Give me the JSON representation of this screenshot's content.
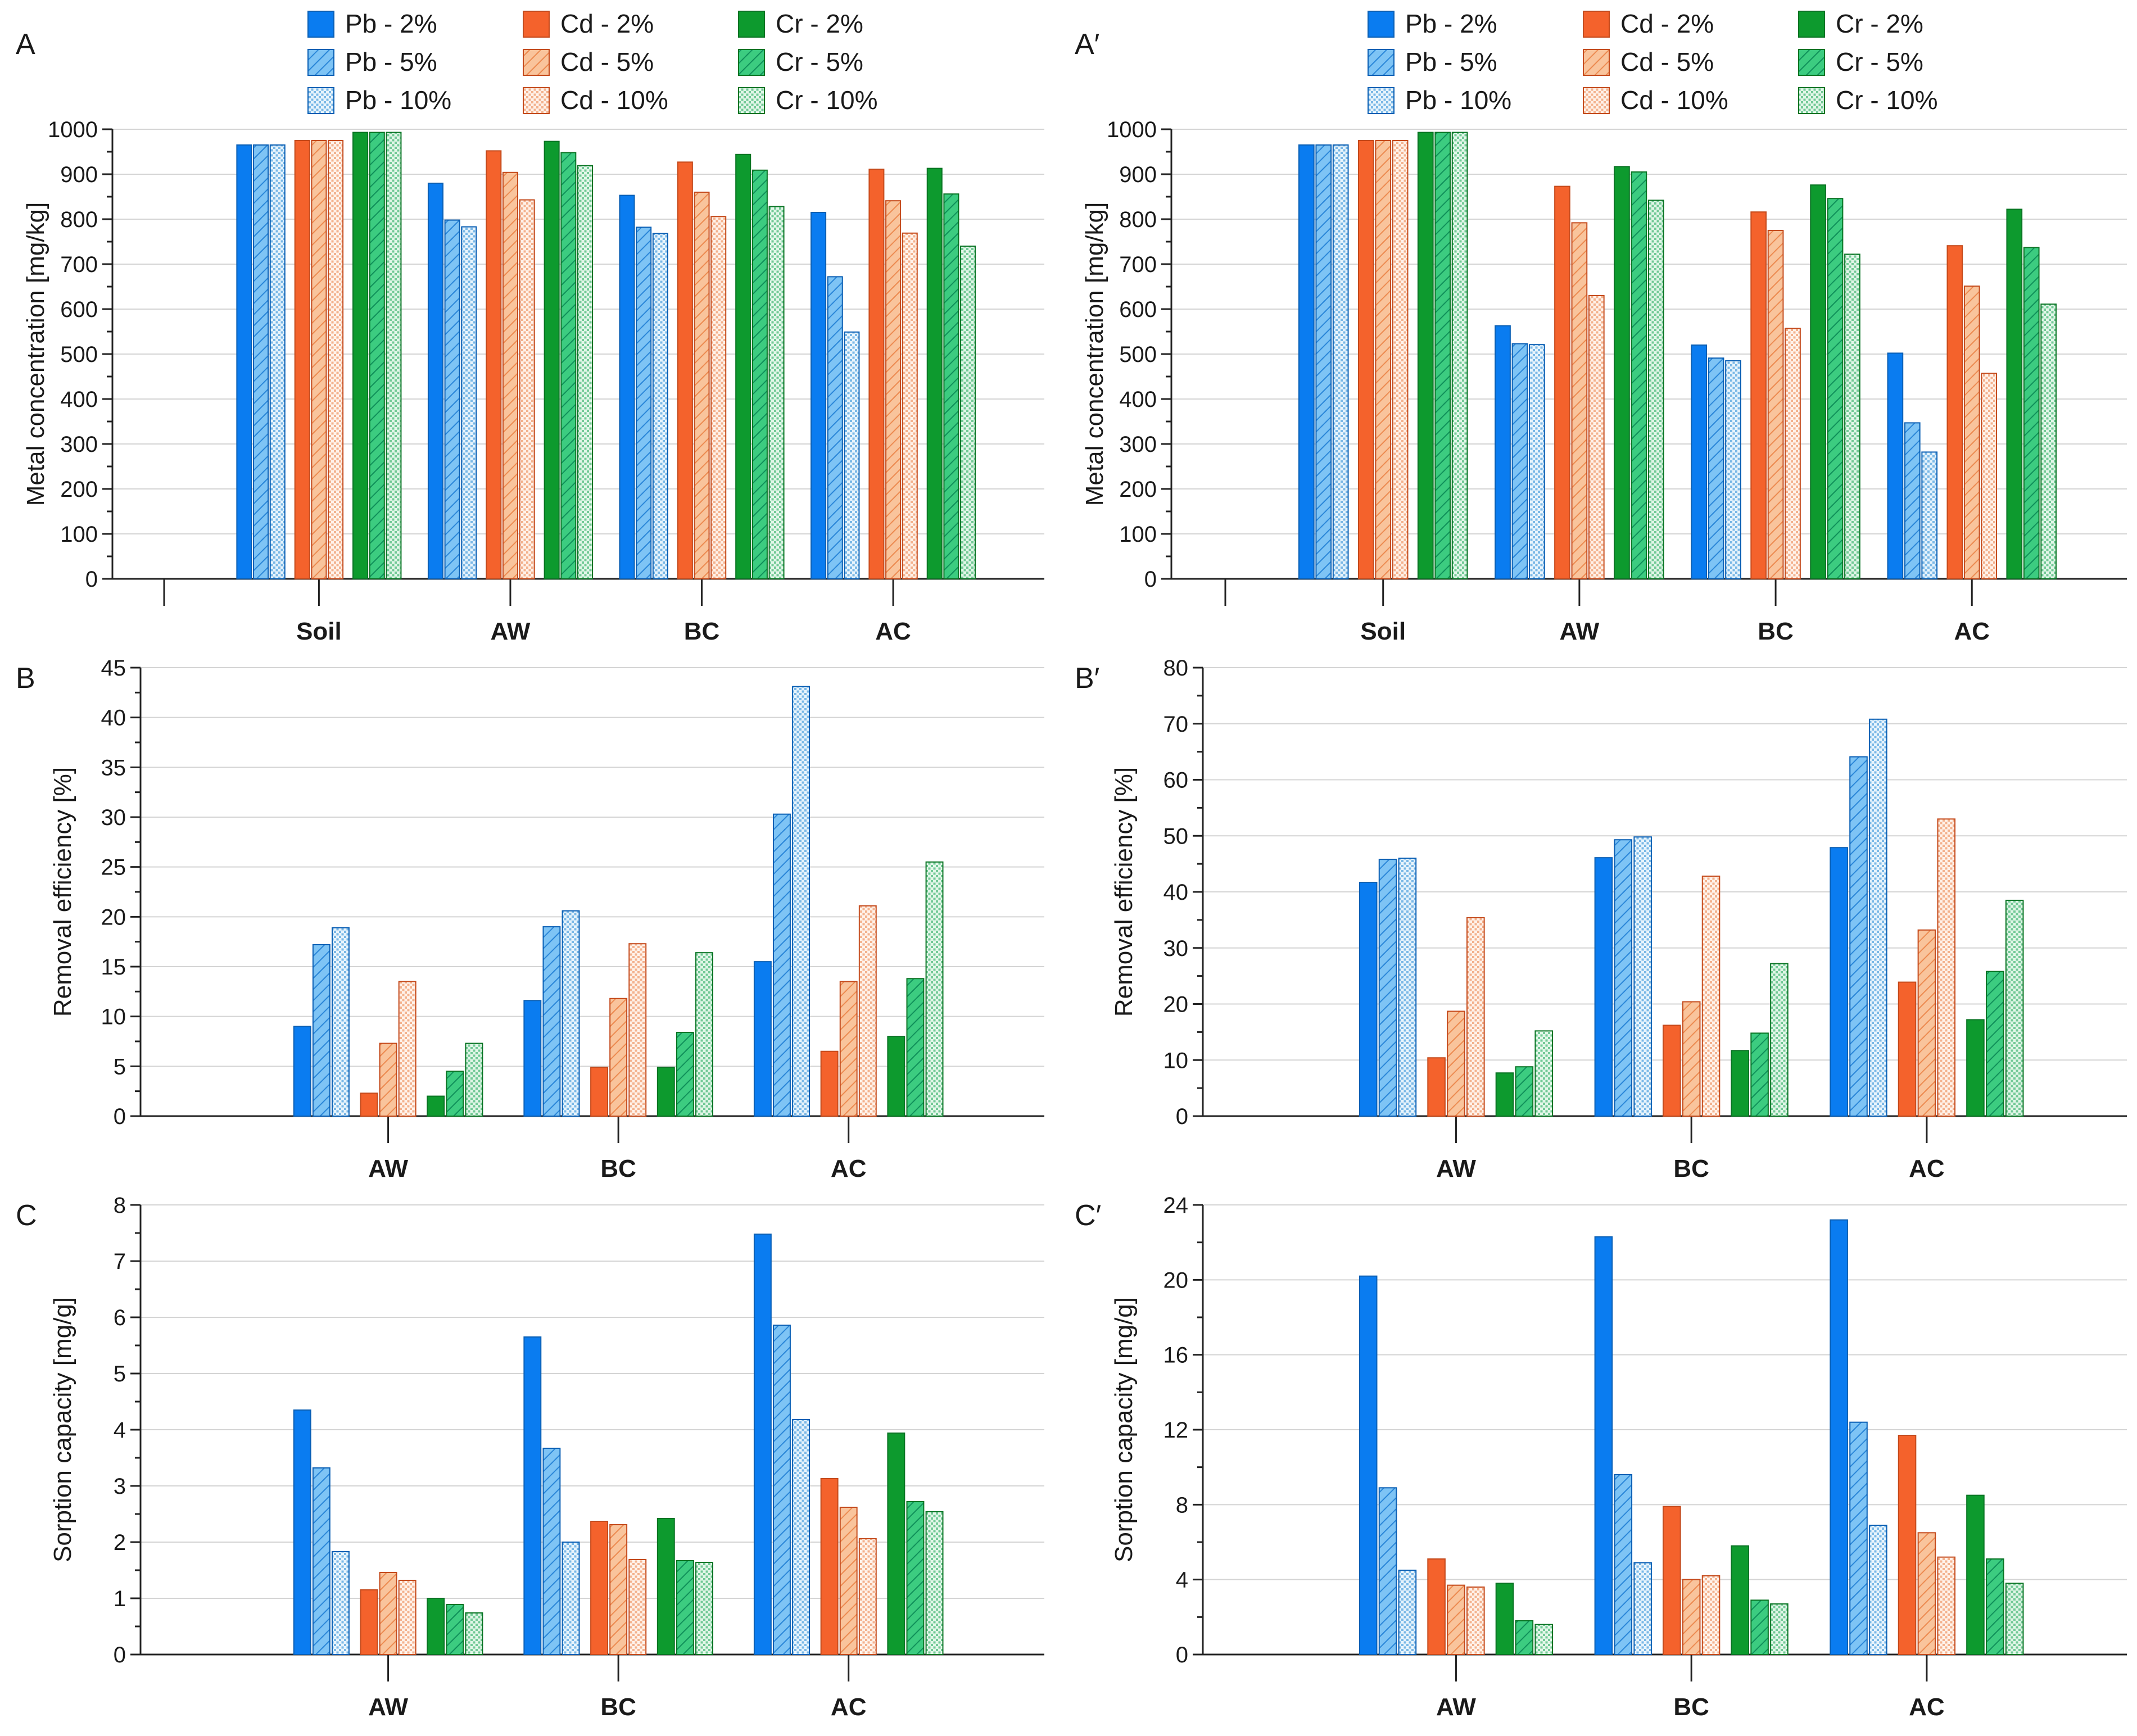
{
  "legend": [
    {
      "label": "Pb - 2%",
      "metal": "Pb",
      "dose": "2%"
    },
    {
      "label": "Cd - 2%",
      "metal": "Cd",
      "dose": "2%"
    },
    {
      "label": "Cr - 2%",
      "metal": "Cr",
      "dose": "2%"
    },
    {
      "label": "Pb - 5%",
      "metal": "Pb",
      "dose": "5%"
    },
    {
      "label": "Cd - 5%",
      "metal": "Cd",
      "dose": "5%"
    },
    {
      "label": "Cr - 5%",
      "metal": "Cr",
      "dose": "5%"
    },
    {
      "label": "Pb - 10%",
      "metal": "Pb",
      "dose": "10%"
    },
    {
      "label": "Cd - 10%",
      "metal": "Cd",
      "dose": "10%"
    },
    {
      "label": "Cr - 10%",
      "metal": "Cr",
      "dose": "10%"
    }
  ],
  "colors": {
    "Pb": {
      "solid": "#0a7cf0",
      "light": "#7ec4f5",
      "pale": "#cfe7f8",
      "edge": "#0a5fb4"
    },
    "Cd": {
      "solid": "#f4622c",
      "light": "#f9b98a",
      "pale": "#fde3d3",
      "edge": "#c44a1c"
    },
    "Cr": {
      "solid": "#0d9a2e",
      "light": "#30c878",
      "pale": "#b8e8c8",
      "edge": "#0a7424"
    }
  },
  "series_order": [
    "Pb - 2%",
    "Pb - 5%",
    "Pb - 10%",
    "Cd - 2%",
    "Cd - 5%",
    "Cd - 10%",
    "Cr - 2%",
    "Cr - 5%",
    "Cr - 10%"
  ],
  "chart_data": [
    {
      "panel": "A",
      "type": "bar",
      "ylabel": "Metal concentration [mg/kg]",
      "ylim": [
        0,
        1000
      ],
      "yticks": [
        0,
        100,
        200,
        300,
        400,
        500,
        600,
        700,
        800,
        900,
        1000
      ],
      "categories": [
        "Soil",
        "AW",
        "BC",
        "AC"
      ],
      "series": [
        {
          "name": "Pb - 2%",
          "values": [
            965,
            880,
            853,
            815
          ]
        },
        {
          "name": "Pb - 5%",
          "values": [
            965,
            798,
            782,
            672
          ]
        },
        {
          "name": "Pb - 10%",
          "values": [
            965,
            783,
            768,
            549
          ]
        },
        {
          "name": "Cd - 2%",
          "values": [
            975,
            952,
            927,
            911
          ]
        },
        {
          "name": "Cd - 5%",
          "values": [
            975,
            904,
            860,
            841
          ]
        },
        {
          "name": "Cd - 10%",
          "values": [
            975,
            843,
            806,
            769
          ]
        },
        {
          "name": "Cr - 2%",
          "values": [
            993,
            973,
            944,
            913
          ]
        },
        {
          "name": "Cr - 5%",
          "values": [
            993,
            948,
            909,
            856
          ]
        },
        {
          "name": "Cr - 10%",
          "values": [
            993,
            919,
            828,
            740
          ]
        }
      ]
    },
    {
      "panel": "A′",
      "type": "bar",
      "ylabel": "Metal concentration [mg/kg]",
      "ylim": [
        0,
        1000
      ],
      "yticks": [
        0,
        100,
        200,
        300,
        400,
        500,
        600,
        700,
        800,
        900,
        1000
      ],
      "categories": [
        "Soil",
        "AW",
        "BC",
        "AC"
      ],
      "series": [
        {
          "name": "Pb - 2%",
          "values": [
            965,
            563,
            520,
            502
          ]
        },
        {
          "name": "Pb - 5%",
          "values": [
            965,
            523,
            491,
            347
          ]
        },
        {
          "name": "Pb - 10%",
          "values": [
            965,
            521,
            485,
            282
          ]
        },
        {
          "name": "Cd - 2%",
          "values": [
            975,
            873,
            816,
            741
          ]
        },
        {
          "name": "Cd - 5%",
          "values": [
            975,
            792,
            775,
            651
          ]
        },
        {
          "name": "Cd - 10%",
          "values": [
            975,
            630,
            557,
            457
          ]
        },
        {
          "name": "Cr - 2%",
          "values": [
            993,
            917,
            876,
            822
          ]
        },
        {
          "name": "Cr - 5%",
          "values": [
            993,
            905,
            846,
            737
          ]
        },
        {
          "name": "Cr - 10%",
          "values": [
            993,
            842,
            722,
            611
          ]
        }
      ]
    },
    {
      "panel": "B",
      "type": "bar",
      "ylabel": "Removal efficiency [%]",
      "ylim": [
        0,
        45
      ],
      "yticks": [
        0,
        5,
        10,
        15,
        20,
        25,
        30,
        35,
        40,
        45
      ],
      "categories": [
        "AW",
        "BC",
        "AC"
      ],
      "series": [
        {
          "name": "Pb - 2%",
          "values": [
            9.0,
            11.6,
            15.5
          ]
        },
        {
          "name": "Pb - 5%",
          "values": [
            17.2,
            19.0,
            30.3
          ]
        },
        {
          "name": "Pb - 10%",
          "values": [
            18.9,
            20.6,
            43.1
          ]
        },
        {
          "name": "Cd - 2%",
          "values": [
            2.3,
            4.9,
            6.5
          ]
        },
        {
          "name": "Cd - 5%",
          "values": [
            7.3,
            11.8,
            13.5
          ]
        },
        {
          "name": "Cd - 10%",
          "values": [
            13.5,
            17.3,
            21.1
          ]
        },
        {
          "name": "Cr - 2%",
          "values": [
            2.0,
            4.9,
            8.0
          ]
        },
        {
          "name": "Cr - 5%",
          "values": [
            4.5,
            8.4,
            13.8
          ]
        },
        {
          "name": "Cr - 10%",
          "values": [
            7.3,
            16.4,
            25.5
          ]
        }
      ]
    },
    {
      "panel": "B′",
      "type": "bar",
      "ylabel": "Removal efficiency [%]",
      "ylim": [
        0,
        80
      ],
      "yticks": [
        0,
        10,
        20,
        30,
        40,
        50,
        60,
        70,
        80
      ],
      "categories": [
        "AW",
        "BC",
        "AC"
      ],
      "series": [
        {
          "name": "Pb - 2%",
          "values": [
            41.7,
            46.1,
            47.9
          ]
        },
        {
          "name": "Pb - 5%",
          "values": [
            45.8,
            49.3,
            64.1
          ]
        },
        {
          "name": "Pb - 10%",
          "values": [
            46.0,
            49.8,
            70.8
          ]
        },
        {
          "name": "Cd - 2%",
          "values": [
            10.4,
            16.2,
            23.9
          ]
        },
        {
          "name": "Cd - 5%",
          "values": [
            18.7,
            20.4,
            33.2
          ]
        },
        {
          "name": "Cd - 10%",
          "values": [
            35.4,
            42.8,
            53.0
          ]
        },
        {
          "name": "Cr - 2%",
          "values": [
            7.7,
            11.7,
            17.2
          ]
        },
        {
          "name": "Cr - 5%",
          "values": [
            8.8,
            14.8,
            25.8
          ]
        },
        {
          "name": "Cr - 10%",
          "values": [
            15.2,
            27.2,
            38.5
          ]
        }
      ]
    },
    {
      "panel": "C",
      "type": "bar",
      "ylabel": "Sorption capacity [mg/g]",
      "ylim": [
        0,
        8
      ],
      "yticks": [
        0,
        1,
        2,
        3,
        4,
        5,
        6,
        7,
        8
      ],
      "categories": [
        "AW",
        "BC",
        "AC"
      ],
      "series": [
        {
          "name": "Pb - 2%",
          "values": [
            4.35,
            5.65,
            7.48
          ]
        },
        {
          "name": "Pb - 5%",
          "values": [
            3.32,
            3.67,
            5.86
          ]
        },
        {
          "name": "Pb - 10%",
          "values": [
            1.83,
            2.0,
            4.18
          ]
        },
        {
          "name": "Cd - 2%",
          "values": [
            1.15,
            2.37,
            3.13
          ]
        },
        {
          "name": "Cd - 5%",
          "values": [
            1.46,
            2.31,
            2.62
          ]
        },
        {
          "name": "Cd - 10%",
          "values": [
            1.32,
            1.69,
            2.06
          ]
        },
        {
          "name": "Cr - 2%",
          "values": [
            1.0,
            2.42,
            3.94
          ]
        },
        {
          "name": "Cr - 5%",
          "values": [
            0.89,
            1.67,
            2.72
          ]
        },
        {
          "name": "Cr - 10%",
          "values": [
            0.74,
            1.64,
            2.54
          ]
        }
      ]
    },
    {
      "panel": "C′",
      "type": "bar",
      "ylabel": "Sorption capacity [mg/g]",
      "ylim": [
        0,
        24
      ],
      "yticks": [
        0,
        4,
        8,
        12,
        16,
        20,
        24
      ],
      "categories": [
        "AW",
        "BC",
        "AC"
      ],
      "series": [
        {
          "name": "Pb - 2%",
          "values": [
            20.2,
            22.3,
            23.2
          ]
        },
        {
          "name": "Pb - 5%",
          "values": [
            8.9,
            9.6,
            12.4
          ]
        },
        {
          "name": "Pb - 10%",
          "values": [
            4.5,
            4.9,
            6.9
          ]
        },
        {
          "name": "Cd - 2%",
          "values": [
            5.1,
            7.9,
            11.7
          ]
        },
        {
          "name": "Cd - 5%",
          "values": [
            3.7,
            4.0,
            6.5
          ]
        },
        {
          "name": "Cd - 10%",
          "values": [
            3.6,
            4.2,
            5.2
          ]
        },
        {
          "name": "Cr - 2%",
          "values": [
            3.8,
            5.8,
            8.5
          ]
        },
        {
          "name": "Cr - 5%",
          "values": [
            1.8,
            2.9,
            5.1
          ]
        },
        {
          "name": "Cr - 10%",
          "values": [
            1.6,
            2.7,
            3.8
          ]
        }
      ]
    }
  ]
}
